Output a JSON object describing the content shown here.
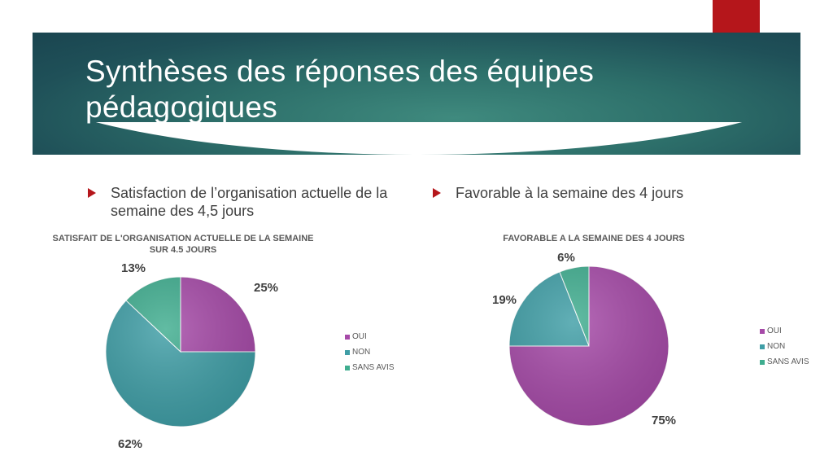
{
  "slide": {
    "title": "Synthèses des réponses des équipes pédagogiques",
    "bullet_left": "Satisfaction de l’organisation actuelle de la semaine des 4,5 jours",
    "bullet_right": "Favorable à la semaine des 4 jours"
  },
  "colors": {
    "oui": "#a64aa8",
    "non": "#3f9ea6",
    "sans_avis": "#3fad8f",
    "accent_red": "#b5161b",
    "banner_teal": "#2d6f6a"
  },
  "chart_data": [
    {
      "type": "pie",
      "title": "SATISFAIT DE L'ORGANISATION ACTUELLE DE LA SEMAINE SUR 4.5 JOURS",
      "categories": [
        "OUI",
        "NON",
        "SANS AVIS"
      ],
      "values": [
        25,
        62,
        13
      ],
      "labels": [
        "25%",
        "62%",
        "13%"
      ],
      "legend": "right"
    },
    {
      "type": "pie",
      "title": "FAVORABLE A LA SEMAINE DES 4 JOURS",
      "categories": [
        "OUI",
        "NON",
        "SANS AVIS"
      ],
      "values": [
        75,
        19,
        6
      ],
      "labels": [
        "75%",
        "19%",
        "6%"
      ],
      "legend": "right"
    }
  ]
}
